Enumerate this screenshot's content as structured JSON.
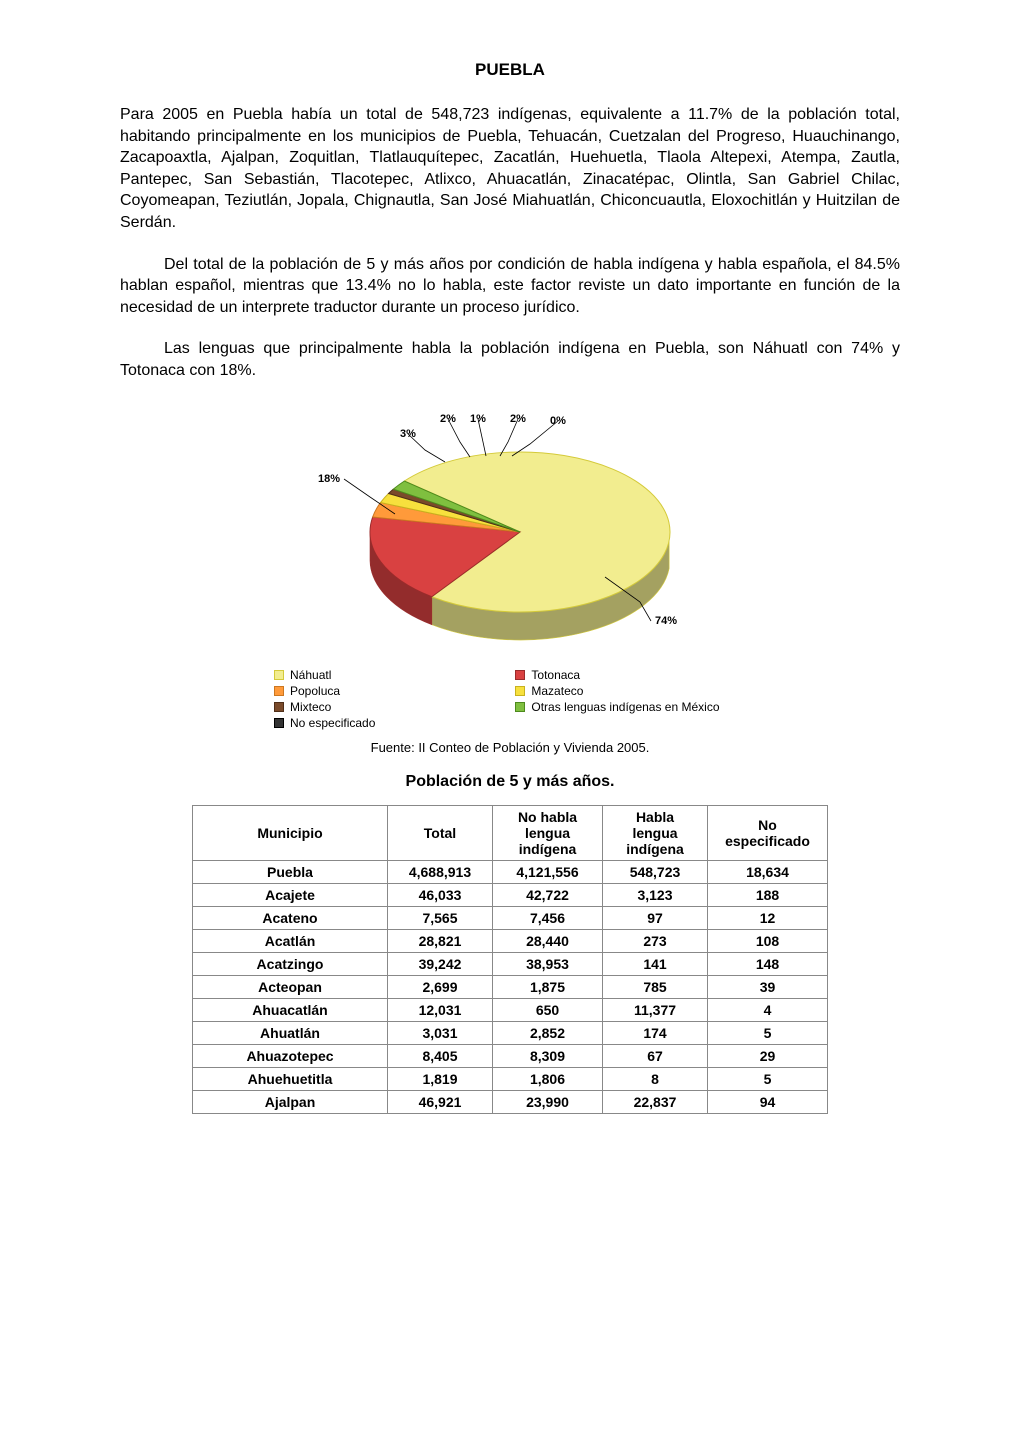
{
  "title": "PUEBLA",
  "paragraphs": {
    "p1": "Para 2005 en Puebla había un total de 548,723 indígenas, equivalente a 11.7% de la población total, habitando principalmente en los municipios de Puebla, Tehuacán, Cuetzalan del Progreso, Huauchinango, Zacapoaxtla, Ajalpan, Zoquitlan, Tlatlauquítepec, Zacatlán, Huehuetla, Tlaola Altepexi, Atempa, Zautla, Pantepec, San Sebastián, Tlacotepec, Atlixco, Ahuacatlán, Zinacatépac, Olintla, San Gabriel Chilac, Coyomeapan, Teziutlán, Jopala, Chignautla, San José Miahuatlán, Chiconcuautla, Eloxochitlán y Huitzilan de Serdán.",
    "p2": "Del total de la población de 5 y más años por condición de habla indígena y habla española, el 84.5% hablan español, mientras que 13.4% no lo habla, este factor reviste un dato importante en función de la necesidad de un interprete traductor durante un proceso jurídico.",
    "p3": "Las lenguas que principalmente habla la población indígena en Puebla, son Náhuatl con 74% y Totonaca con 18%."
  },
  "chart": {
    "type": "pie3d",
    "slices": [
      {
        "label": "Náhuatl",
        "value": 74,
        "display": "74%",
        "color": "#f2ed8f",
        "border": "#d4ca3a"
      },
      {
        "label": "Totonaca",
        "value": 18,
        "display": "18%",
        "color": "#d94141",
        "border": "#9a2b2b"
      },
      {
        "label": "Popoluca",
        "value": 3,
        "display": "3%",
        "color": "#ff9a3a",
        "border": "#cc7720"
      },
      {
        "label": "Mazateco",
        "value": 2,
        "display": "2%",
        "color": "#f7e03d",
        "border": "#c8b21e"
      },
      {
        "label": "Mixteco",
        "value": 1,
        "display": "1%",
        "color": "#7a4a2a",
        "border": "#4f2e18"
      },
      {
        "label": "Otras lenguas indígenas en México",
        "value": 2,
        "display": "2%",
        "color": "#7fbf3f",
        "border": "#4d8a1d"
      },
      {
        "label": "No especificado",
        "value": 0,
        "display": "0%",
        "color": "#333333",
        "border": "#000000"
      }
    ],
    "label_fontsize": 11,
    "label_color": "#000000",
    "background_color": "#ffffff",
    "leader_color": "#000000"
  },
  "caption": "Fuente: II Conteo de Población y Vivienda 2005.",
  "table": {
    "title": "Población de 5 y más años.",
    "columns": [
      "Municipio",
      "Total",
      "No habla lengua indígena",
      "Habla lengua indígena",
      "No especificado"
    ],
    "rows": [
      [
        "Puebla",
        "4,688,913",
        "4,121,556",
        "548,723",
        "18,634"
      ],
      [
        "Acajete",
        "46,033",
        "42,722",
        "3,123",
        "188"
      ],
      [
        "Acateno",
        "7,565",
        "7,456",
        "97",
        "12"
      ],
      [
        "Acatlán",
        "28,821",
        "28,440",
        "273",
        "108"
      ],
      [
        "Acatzingo",
        "39,242",
        "38,953",
        "141",
        "148"
      ],
      [
        "Acteopan",
        "2,699",
        "1,875",
        "785",
        "39"
      ],
      [
        "Ahuacatlán",
        "12,031",
        "650",
        "11,377",
        "4"
      ],
      [
        "Ahuatlán",
        "3,031",
        "2,852",
        "174",
        "5"
      ],
      [
        "Ahuazotepec",
        "8,405",
        "8,309",
        "67",
        "29"
      ],
      [
        "Ahuehuetitla",
        "1,819",
        "1,806",
        "8",
        "5"
      ],
      [
        "Ajalpan",
        "46,921",
        "23,990",
        "22,837",
        "94"
      ]
    ]
  }
}
